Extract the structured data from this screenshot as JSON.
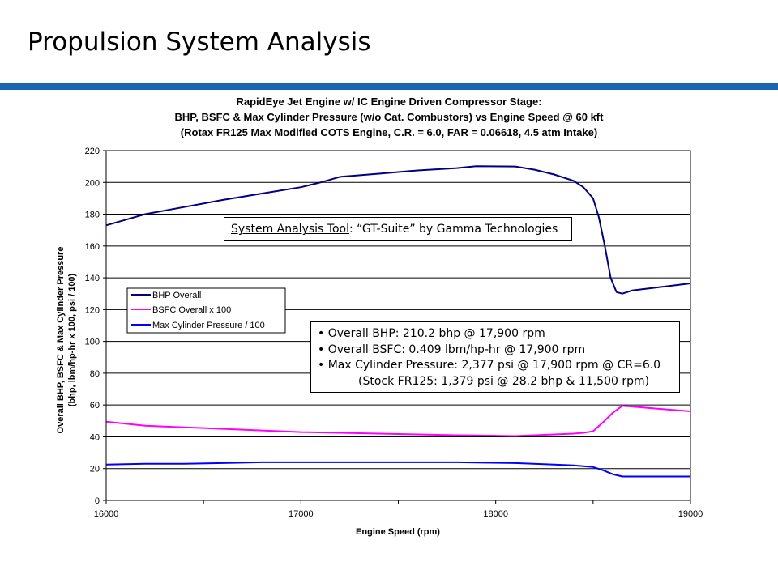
{
  "slide": {
    "title": "Propulsion System Analysis"
  },
  "colors": {
    "accent_rule": "#1a66b0",
    "bhp": "#000080",
    "bsfc": "#ff00ff",
    "pressure": "#0000ff"
  },
  "annotations": {
    "tool_label": "System Analysis Tool",
    "tool_value": ": “GT-Suite” by Gamma Technologies",
    "bullets": [
      "• Overall BHP: 210.2 bhp @ 17,900 rpm",
      "• Overall BSFC: 0.409 lbm/hp-hr @ 17,900 rpm",
      "• Max Cylinder Pressure: 2,377 psi @ 17,900 rpm @ CR=6.0"
    ],
    "sub_bullet": "(Stock FR125: 1,379 psi @ 28.2 bhp & 11,500 rpm)"
  },
  "chart_data": {
    "type": "line",
    "title_lines": [
      "RapidEye Jet Engine w/ IC Engine Driven Compressor Stage:",
      "BHP, BSFC & Max Cylinder Pressure (w/o Cat. Combustors) vs Engine Speed @ 60 kft",
      "(Rotax FR125 Max Modified COTS Engine, C.R. = 6.0, FAR = 0.06618, 4.5 atm Intake)"
    ],
    "xlabel": "Engine Speed (rpm)",
    "ylabel_lines": [
      "Overall BHP, BSFC & Max Cylinder Pressure",
      "(bhp, lbm/hp-hr x 100, psi / 100)"
    ],
    "xlim": [
      16000,
      19000
    ],
    "ylim": [
      0,
      220
    ],
    "xticks": [
      "16000",
      "17000",
      "18000",
      "19000"
    ],
    "yticks": [
      "0",
      "20",
      "40",
      "60",
      "80",
      "100",
      "120",
      "140",
      "160",
      "180",
      "200",
      "220"
    ],
    "grid": "horizontal",
    "legend_placement": "middle-left",
    "series": [
      {
        "name": "BHP Overall",
        "color": "#000080",
        "points": [
          [
            16000,
            173
          ],
          [
            16100,
            176.5
          ],
          [
            16200,
            180
          ],
          [
            16400,
            184.5
          ],
          [
            16600,
            189
          ],
          [
            16800,
            193
          ],
          [
            17000,
            197
          ],
          [
            17100,
            200
          ],
          [
            17200,
            203.5
          ],
          [
            17400,
            205.5
          ],
          [
            17600,
            207.5
          ],
          [
            17800,
            209
          ],
          [
            17900,
            210.2
          ],
          [
            18100,
            210
          ],
          [
            18200,
            208
          ],
          [
            18300,
            205
          ],
          [
            18400,
            201
          ],
          [
            18450,
            197
          ],
          [
            18500,
            190
          ],
          [
            18530,
            178
          ],
          [
            18560,
            160
          ],
          [
            18590,
            140
          ],
          [
            18620,
            131
          ],
          [
            18650,
            130
          ],
          [
            18700,
            132
          ],
          [
            18800,
            133.5
          ],
          [
            19000,
            136.5
          ]
        ]
      },
      {
        "name": "BSFC Overall x 100",
        "color": "#ff00ff",
        "points": [
          [
            16000,
            49.5
          ],
          [
            16200,
            47
          ],
          [
            16400,
            46
          ],
          [
            16600,
            45
          ],
          [
            16800,
            44
          ],
          [
            17000,
            43
          ],
          [
            17200,
            42.5
          ],
          [
            17400,
            42
          ],
          [
            17600,
            41.5
          ],
          [
            17800,
            41
          ],
          [
            17900,
            40.9
          ],
          [
            18100,
            40.5
          ],
          [
            18300,
            41.5
          ],
          [
            18400,
            42
          ],
          [
            18450,
            42.5
          ],
          [
            18500,
            43.5
          ],
          [
            18550,
            49
          ],
          [
            18600,
            55
          ],
          [
            18650,
            59.5
          ],
          [
            18700,
            59
          ],
          [
            18800,
            58
          ],
          [
            19000,
            56
          ]
        ]
      },
      {
        "name": "Max Cylinder Pressure / 100",
        "color": "#0000ff",
        "points": [
          [
            16000,
            22.5
          ],
          [
            16200,
            23
          ],
          [
            16400,
            23
          ],
          [
            16600,
            23.5
          ],
          [
            16800,
            24
          ],
          [
            17000,
            24
          ],
          [
            17200,
            24
          ],
          [
            17400,
            24
          ],
          [
            17600,
            24
          ],
          [
            17800,
            24
          ],
          [
            17900,
            23.8
          ],
          [
            18100,
            23.5
          ],
          [
            18300,
            22.5
          ],
          [
            18400,
            22
          ],
          [
            18500,
            21
          ],
          [
            18550,
            19
          ],
          [
            18600,
            16.5
          ],
          [
            18650,
            15
          ],
          [
            18700,
            15
          ],
          [
            19000,
            15
          ]
        ]
      }
    ]
  }
}
